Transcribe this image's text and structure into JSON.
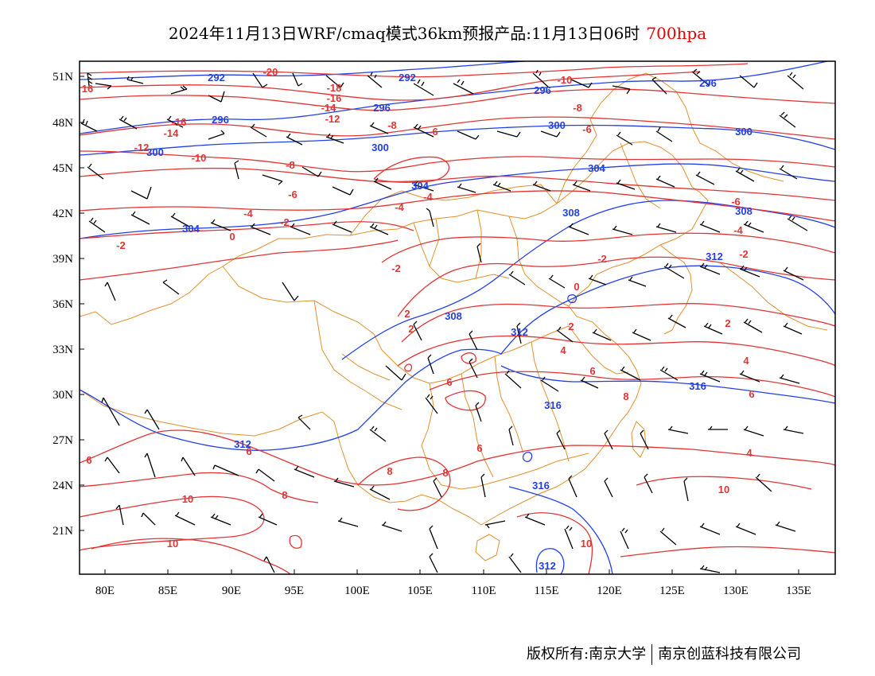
{
  "title": {
    "main": "2024年11月13日WRF/cmaq模式36km预报产品:11月13日06时",
    "level": "700hpa"
  },
  "colors": {
    "height_contour": "#2340e6",
    "temperature_contour": "#e23434",
    "boundary": "#e0902e",
    "wind_barb": "#000000",
    "frame": "#000000"
  },
  "axes": {
    "lon_ticks": [
      "80E",
      "85E",
      "90E",
      "95E",
      "100E",
      "105E",
      "110E",
      "115E",
      "120E",
      "125E",
      "130E",
      "135E"
    ],
    "lat_ticks": [
      "51N",
      "48N",
      "45N",
      "42N",
      "39N",
      "36N",
      "33N",
      "30N",
      "27N",
      "24N",
      "21N"
    ]
  },
  "height_labels": [
    "292",
    "292",
    "296",
    "296",
    "300",
    "300",
    "300",
    "296",
    "296",
    "300",
    "304",
    "304",
    "304",
    "308",
    "308",
    "308",
    "312",
    "312",
    "316",
    "316",
    "316",
    "312",
    "312"
  ],
  "temperature_labels": [
    "16",
    "-20",
    "-18",
    "-16",
    "-14",
    "-12",
    "-16",
    "-14",
    "-12",
    "-10",
    "-10",
    "-8",
    "-6",
    "-8",
    "-8",
    "-6",
    "-6",
    "-4",
    "-4",
    "-4",
    "-2",
    "-2",
    "0",
    "-2",
    "-2",
    "0",
    "2",
    "2",
    "2",
    "4",
    "4",
    "6",
    "6",
    "6",
    "6",
    "6",
    "8",
    "8",
    "8",
    "8",
    "10",
    "10",
    "10",
    "10",
    "2",
    "4",
    "-4",
    "-2",
    "6",
    "-6"
  ],
  "footer": {
    "left": "版权所有:南京大学",
    "right": "南京创蓝科技有限公司"
  }
}
